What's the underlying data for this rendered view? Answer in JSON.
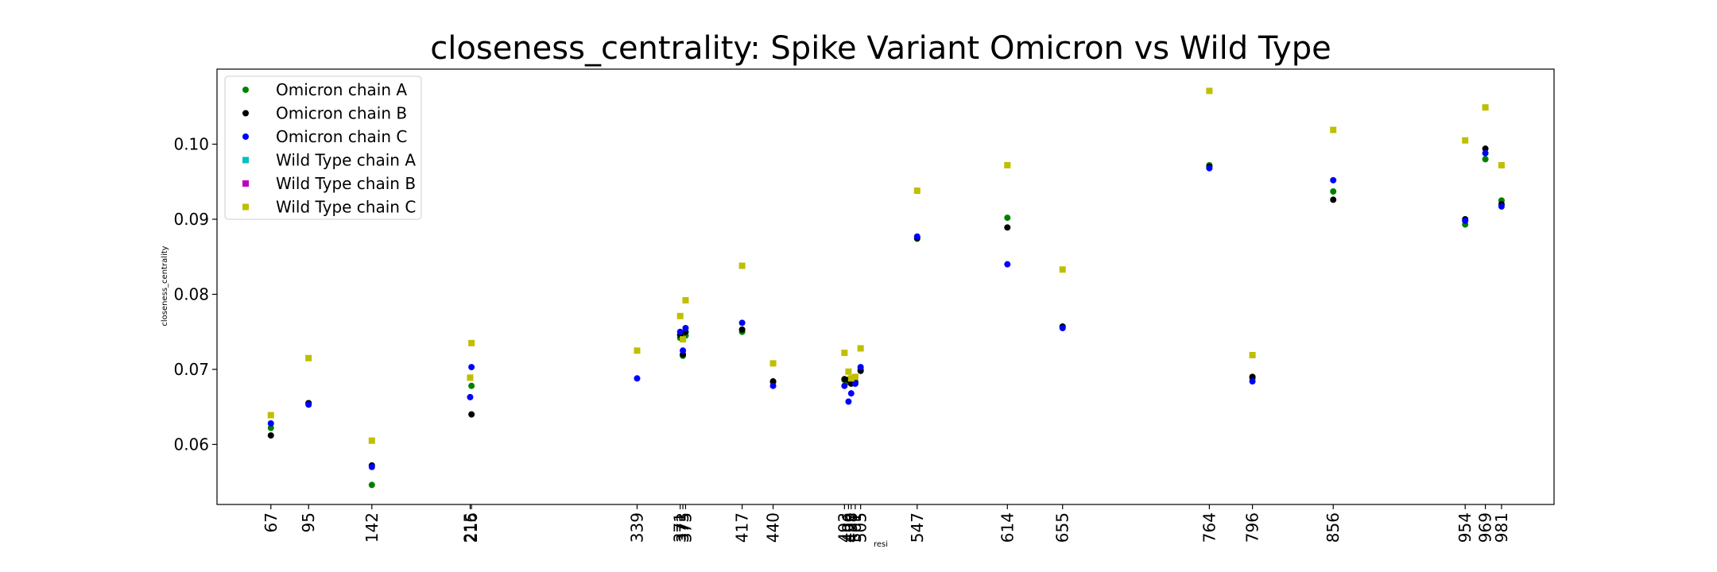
{
  "chart_data": {
    "type": "scatter",
    "title": "closeness_centrality: Spike Variant Omicron vs Wild Type",
    "xlabel": "resi",
    "ylabel": "closeness_centrality",
    "legend_position": "top-left",
    "grid": false,
    "ylim": [
      0.052,
      0.11
    ],
    "y_ticks": [
      0.06,
      0.07,
      0.08,
      0.09,
      0.1
    ],
    "y_tick_labels": [
      "0.06",
      "0.07",
      "0.08",
      "0.09",
      "0.10"
    ],
    "xlim": [
      27,
      1020
    ],
    "x_ticks": [
      67,
      95,
      142,
      215,
      216,
      339,
      371,
      373,
      375,
      417,
      440,
      493,
      496,
      498,
      501,
      505,
      547,
      614,
      655,
      764,
      796,
      856,
      954,
      969,
      981
    ],
    "x_tick_labels": [
      "67",
      "95",
      "142",
      "215",
      "216",
      "339",
      "371",
      "373",
      "375",
      "417",
      "440",
      "493",
      "496",
      "498",
      "501",
      "505",
      "547",
      "614",
      "655",
      "764",
      "796",
      "856",
      "954",
      "969",
      "981"
    ],
    "series": [
      {
        "name": "Omicron chain A",
        "color": "#008000",
        "marker": "circle",
        "x": [
          67,
          95,
          142,
          216,
          371,
          373,
          375,
          417,
          440,
          493,
          496,
          498,
          501,
          505,
          547,
          614,
          655,
          764,
          796,
          856,
          954,
          969,
          981
        ],
        "y": [
          0.0622,
          0.0655,
          0.0546,
          0.0678,
          0.0742,
          0.0718,
          0.0745,
          0.075,
          0.0683,
          0.0686,
          0.0683,
          0.0688,
          0.0681,
          0.07,
          0.0874,
          0.0902,
          0.0757,
          0.0972,
          0.0688,
          0.0937,
          0.0893,
          0.098,
          0.0925
        ]
      },
      {
        "name": "Omicron chain B",
        "color": "#000000",
        "marker": "circle",
        "x": [
          67,
          95,
          142,
          216,
          371,
          373,
          375,
          417,
          440,
          493,
          496,
          498,
          501,
          505,
          547,
          614,
          655,
          764,
          796,
          856,
          954,
          969,
          981
        ],
        "y": [
          0.0612,
          0.0655,
          0.0572,
          0.064,
          0.0746,
          0.072,
          0.075,
          0.0753,
          0.0684,
          0.0687,
          0.0686,
          0.0681,
          0.0683,
          0.0698,
          0.0875,
          0.0889,
          0.0757,
          0.097,
          0.069,
          0.0926,
          0.09,
          0.0994,
          0.092
        ]
      },
      {
        "name": "Omicron chain C",
        "color": "#0000ff",
        "marker": "circle",
        "x": [
          67,
          95,
          142,
          215,
          216,
          339,
          371,
          373,
          375,
          417,
          440,
          493,
          496,
          498,
          501,
          505,
          547,
          614,
          655,
          764,
          796,
          856,
          954,
          969,
          981
        ],
        "y": [
          0.0628,
          0.0653,
          0.057,
          0.0663,
          0.0703,
          0.0688,
          0.075,
          0.0725,
          0.0755,
          0.0762,
          0.0678,
          0.0678,
          0.0657,
          0.0668,
          0.0681,
          0.0703,
          0.0877,
          0.084,
          0.0755,
          0.0968,
          0.0684,
          0.0952,
          0.0898,
          0.0988,
          0.0917
        ]
      },
      {
        "name": "Wild Type chain A",
        "color": "#00bfbf",
        "marker": "square",
        "x": [],
        "y": []
      },
      {
        "name": "Wild Type chain B",
        "color": "#bf00bf",
        "marker": "square",
        "x": [],
        "y": []
      },
      {
        "name": "Wild Type chain C",
        "color": "#bfbf00",
        "marker": "square",
        "x": [
          67,
          95,
          142,
          215,
          216,
          339,
          371,
          373,
          375,
          417,
          440,
          493,
          496,
          498,
          501,
          505,
          547,
          614,
          655,
          764,
          796,
          856,
          954,
          969,
          981
        ],
        "y": [
          0.0639,
          0.0715,
          0.0605,
          0.0689,
          0.0735,
          0.0725,
          0.0771,
          0.074,
          0.0792,
          0.0838,
          0.0708,
          0.0722,
          0.0697,
          0.0688,
          0.069,
          0.0728,
          0.0938,
          0.0972,
          0.0833,
          0.1071,
          0.0719,
          0.1019,
          0.1005,
          0.1049,
          0.0972
        ]
      }
    ]
  }
}
